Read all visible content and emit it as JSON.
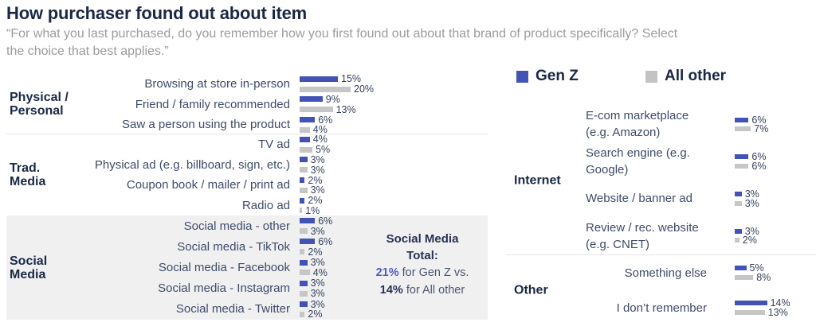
{
  "title": "How purchaser found out about item",
  "subtitle": "“For what you last purchased, do you remember how you first found out about that brand of product specifically?  Select\nthe choice that best applies.”",
  "legend": {
    "gen_z": "Gen Z",
    "all_other": "All other"
  },
  "colors": {
    "gen_z_bar": "#4353b5",
    "all_other_bar": "#c6c6c7",
    "title_navy": "#1b2845",
    "callout_genz_accent": "#4d5ace",
    "social_media_block_bg": "#f0f0f1"
  },
  "callout": {
    "title": "Social Media\nTotal:",
    "gen_z_value": "21%",
    "gen_z_rest": " for Gen Z vs.",
    "all_other_value": "14%",
    "all_other_rest": " for All other"
  },
  "chart_data": {
    "type": "bar",
    "orientation": "horizontal",
    "unit": "%",
    "series_names": [
      "Gen Z",
      "All other"
    ],
    "legend_position": "top-right",
    "left_panel": {
      "sections": [
        {
          "category": "Physical /\nPersonal",
          "rows": [
            {
              "label": "Browsing at store in-person",
              "gen_z": 15,
              "all_other": 20
            },
            {
              "label": "Friend / family recommended",
              "gen_z": 9,
              "all_other": 13
            },
            {
              "label": "Saw a person using the product",
              "gen_z": 6,
              "all_other": 4
            }
          ]
        },
        {
          "category": "Trad.\nMedia",
          "rows": [
            {
              "label": "TV ad",
              "gen_z": 4,
              "all_other": 5
            },
            {
              "label": "Physical ad (e.g. billboard, sign, etc.)",
              "gen_z": 3,
              "all_other": 3
            },
            {
              "label": "Coupon book / mailer / print ad",
              "gen_z": 2,
              "all_other": 3
            },
            {
              "label": "Radio ad",
              "gen_z": 2,
              "all_other": 1
            }
          ]
        },
        {
          "category": "Social\nMedia",
          "rows": [
            {
              "label": "Social media - other",
              "gen_z": 6,
              "all_other": 3
            },
            {
              "label": "Social media - TikTok",
              "gen_z": 6,
              "all_other": 2
            },
            {
              "label": "Social media - Facebook",
              "gen_z": 3,
              "all_other": 4
            },
            {
              "label": "Social media - Instagram",
              "gen_z": 3,
              "all_other": 3
            },
            {
              "label": "Social media - Twitter",
              "gen_z": 3,
              "all_other": 2
            }
          ]
        }
      ]
    },
    "right_panel": {
      "sections": [
        {
          "category": "Internet",
          "rows": [
            {
              "label": "E-com marketplace (e.g. Amazon)",
              "gen_z": 6,
              "all_other": 7
            },
            {
              "label": "Search engine (e.g. Google)",
              "gen_z": 6,
              "all_other": 6
            },
            {
              "label": "Website / banner ad",
              "gen_z": 3,
              "all_other": 3
            },
            {
              "label": "Review / rec. website (e.g. CNET)",
              "gen_z": 3,
              "all_other": 2
            }
          ]
        },
        {
          "category": "Other",
          "rows": [
            {
              "label": "Something else",
              "gen_z": 5,
              "all_other": 8
            },
            {
              "label": "I don’t remember",
              "gen_z": 14,
              "all_other": 13
            }
          ]
        }
      ]
    }
  }
}
